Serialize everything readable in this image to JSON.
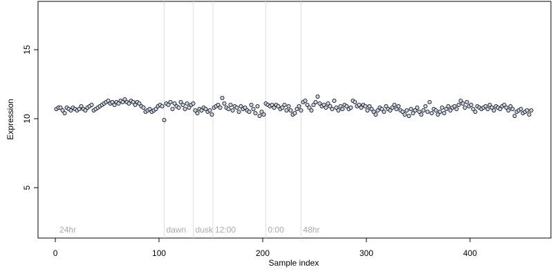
{
  "chart_data": {
    "type": "scatter",
    "xlabel": "Sample index",
    "ylabel": "Expression",
    "xlim": [
      -16.7,
      478
    ],
    "ylim": [
      1.35,
      18.5
    ],
    "xticks": [
      0,
      100,
      200,
      300,
      400
    ],
    "yticks": [
      5,
      10,
      15
    ],
    "vlines": [
      105,
      133,
      152,
      203,
      237
    ],
    "annotations": [
      {
        "x": 2,
        "text": "24hr"
      },
      {
        "x": 105,
        "text": "dawn"
      },
      {
        "x": 133,
        "text": "dusk"
      },
      {
        "x": 152,
        "text": "12:00"
      },
      {
        "x": 203,
        "text": "0:00"
      },
      {
        "x": 237,
        "text": "48hr"
      }
    ],
    "series": [
      {
        "color": "#c9d3e6",
        "edgecolor": "#000000",
        "x": [
          1,
          3,
          5,
          7,
          9,
          11,
          13,
          15,
          17,
          19,
          21,
          23,
          25,
          27,
          29,
          31,
          33,
          35,
          37,
          39,
          41,
          43,
          45,
          47,
          49,
          51,
          53,
          55,
          57,
          59,
          61,
          63,
          65,
          67,
          69,
          71,
          73,
          75,
          77,
          79,
          81,
          83,
          85,
          87,
          89,
          91,
          93,
          95,
          97,
          99,
          101,
          103,
          105,
          107,
          109,
          111,
          113,
          115,
          117,
          119,
          121,
          123,
          125,
          127,
          129,
          131,
          133,
          135,
          137,
          139,
          141,
          143,
          145,
          147,
          149,
          151,
          153,
          155,
          157,
          159,
          161,
          163,
          165,
          167,
          169,
          171,
          173,
          175,
          177,
          179,
          181,
          183,
          185,
          187,
          189,
          191,
          193,
          195,
          197,
          199,
          201,
          203,
          205,
          207,
          209,
          211,
          213,
          215,
          217,
          219,
          221,
          223,
          225,
          227,
          229,
          231,
          233,
          235,
          237,
          239,
          241,
          243,
          245,
          247,
          249,
          251,
          253,
          255,
          257,
          259,
          261,
          263,
          265,
          267,
          269,
          271,
          273,
          275,
          277,
          279,
          281,
          283,
          285,
          287,
          289,
          291,
          293,
          295,
          297,
          299,
          301,
          303,
          305,
          307,
          309,
          311,
          313,
          315,
          317,
          319,
          321,
          323,
          325,
          327,
          329,
          331,
          333,
          335,
          337,
          339,
          341,
          343,
          345,
          347,
          349,
          351,
          353,
          355,
          357,
          359,
          361,
          363,
          365,
          367,
          369,
          371,
          373,
          375,
          377,
          379,
          381,
          383,
          385,
          387,
          389,
          391,
          393,
          395,
          397,
          399,
          401,
          403,
          405,
          407,
          409,
          411,
          413,
          415,
          417,
          419,
          421,
          423,
          425,
          427,
          429,
          431,
          433,
          435,
          437,
          439,
          441,
          443,
          445,
          447,
          449,
          451,
          453,
          455,
          457,
          459
        ],
        "values": [
          10.7,
          10.8,
          10.8,
          10.6,
          10.4,
          10.8,
          10.7,
          10.6,
          10.8,
          10.7,
          10.6,
          10.7,
          10.9,
          10.7,
          10.6,
          10.8,
          10.9,
          11.0,
          10.6,
          10.7,
          10.8,
          10.9,
          11.0,
          11.1,
          11.2,
          11.3,
          11.1,
          11.2,
          11.0,
          11.2,
          11.1,
          11.3,
          11.2,
          11.4,
          11.2,
          11.1,
          11.3,
          11.2,
          11.0,
          11.2,
          11.1,
          10.9,
          10.8,
          10.5,
          10.6,
          10.7,
          10.5,
          10.6,
          10.7,
          10.9,
          11.0,
          10.9,
          9.9,
          11.1,
          11.0,
          11.2,
          10.7,
          11.1,
          10.9,
          10.8,
          11.2,
          11.0,
          10.7,
          11.1,
          10.8,
          11.0,
          11.1,
          10.6,
          10.4,
          10.7,
          10.6,
          10.8,
          10.7,
          10.5,
          10.6,
          10.3,
          10.8,
          10.9,
          11.0,
          10.8,
          11.5,
          11.1,
          10.8,
          10.7,
          11.0,
          10.6,
          10.9,
          10.8,
          10.5,
          10.9,
          10.7,
          10.8,
          10.6,
          10.5,
          11.0,
          10.7,
          10.4,
          10.9,
          10.2,
          10.5,
          10.3,
          11.1,
          11.0,
          10.9,
          11.0,
          10.8,
          11.0,
          10.9,
          10.7,
          10.8,
          11.0,
          10.6,
          10.9,
          10.6,
          10.3,
          10.4,
          10.7,
          10.9,
          10.6,
          11.2,
          11.3,
          11.0,
          10.8,
          10.6,
          11.0,
          11.2,
          11.6,
          11.1,
          10.9,
          11.0,
          10.8,
          11.1,
          10.9,
          10.7,
          11.3,
          10.8,
          10.6,
          10.9,
          10.7,
          11.0,
          10.9,
          10.7,
          10.8,
          11.3,
          11.2,
          10.9,
          11.0,
          10.8,
          11.0,
          10.9,
          10.6,
          10.9,
          10.7,
          10.5,
          10.3,
          10.6,
          10.8,
          10.7,
          10.5,
          10.9,
          10.7,
          10.6,
          10.8,
          11.0,
          10.7,
          10.9,
          10.6,
          10.5,
          10.3,
          10.6,
          10.2,
          10.7,
          10.4,
          10.6,
          10.8,
          10.5,
          10.3,
          10.6,
          10.9,
          10.5,
          11.2,
          10.4,
          10.7,
          10.6,
          10.3,
          10.5,
          10.8,
          10.4,
          10.7,
          10.9,
          10.6,
          10.8,
          10.9,
          10.7,
          11.0,
          11.3,
          11.1,
          10.8,
          11.2,
          10.9,
          11.0,
          10.7,
          10.5,
          10.9,
          10.8,
          10.7,
          10.8,
          10.9,
          10.7,
          11.0,
          10.8,
          10.6,
          10.9,
          10.8,
          10.7,
          10.9,
          11.0,
          10.8,
          10.6,
          10.9,
          10.7,
          10.2,
          10.5,
          10.6,
          10.7,
          10.4,
          10.5,
          10.6,
          10.3,
          10.6
        ]
      }
    ]
  }
}
